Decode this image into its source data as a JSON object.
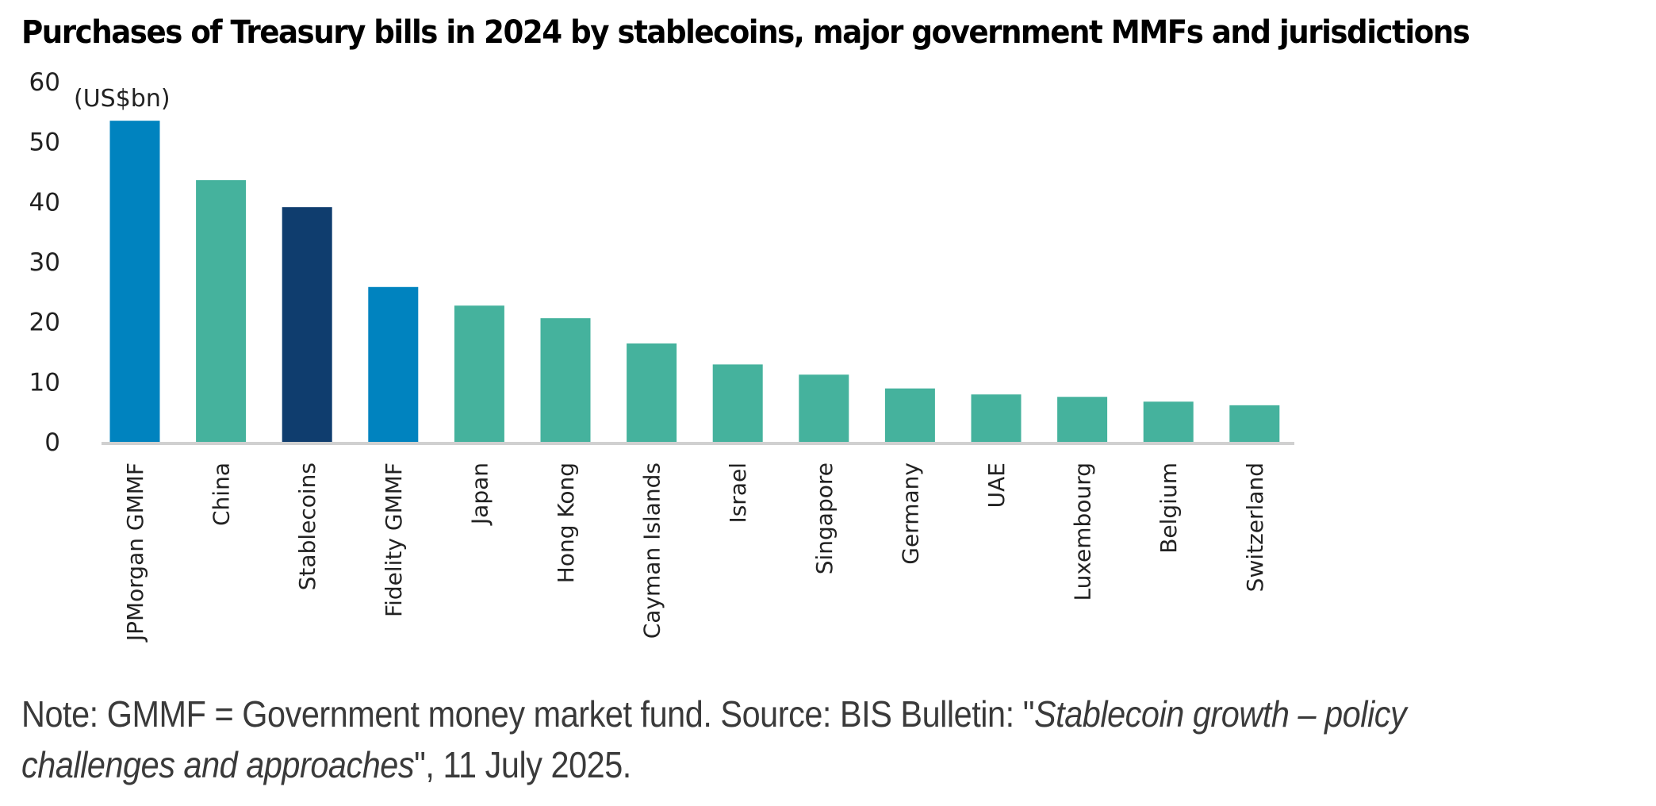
{
  "chart_data": {
    "type": "bar",
    "title": "Purchases of Treasury bills in 2024 by stablecoins, major government MMFs and jurisdictions",
    "unit_label": "(US$bn)",
    "xlabel": "",
    "ylabel": "US$bn",
    "ylim": [
      0,
      60
    ],
    "yticks": [
      0,
      10,
      20,
      30,
      40,
      50,
      60
    ],
    "grid": false,
    "legend": "none",
    "categories": [
      "JPMorgan GMMF",
      "China",
      "Stablecoins",
      "Fidelity GMMF",
      "Japan",
      "Hong Kong",
      "Cayman Islands",
      "Israel",
      "Singapore",
      "Germany",
      "UAE",
      "Luxembourg",
      "Belgium",
      "Switzerland"
    ],
    "values": [
      53.5,
      43.6,
      39.1,
      25.8,
      22.7,
      20.6,
      16.4,
      12.9,
      11.2,
      8.9,
      7.9,
      7.5,
      6.7,
      6.1
    ],
    "category_groups": [
      "gmmf",
      "jurisdiction",
      "stablecoin",
      "gmmf",
      "jurisdiction",
      "jurisdiction",
      "jurisdiction",
      "jurisdiction",
      "jurisdiction",
      "jurisdiction",
      "jurisdiction",
      "jurisdiction",
      "jurisdiction",
      "jurisdiction"
    ],
    "colors": {
      "gmmf": "#0083BF",
      "jurisdiction": "#45B29D",
      "stablecoin": "#0F3D6E",
      "axis": "#D0D0D0"
    }
  },
  "note": {
    "prefix": "Note: GMMF = Government money market fund. Source: BIS Bulletin: \"",
    "italic": "Stablecoin growth – policy challenges and approaches",
    "suffix": "\", 11 July 2025."
  }
}
